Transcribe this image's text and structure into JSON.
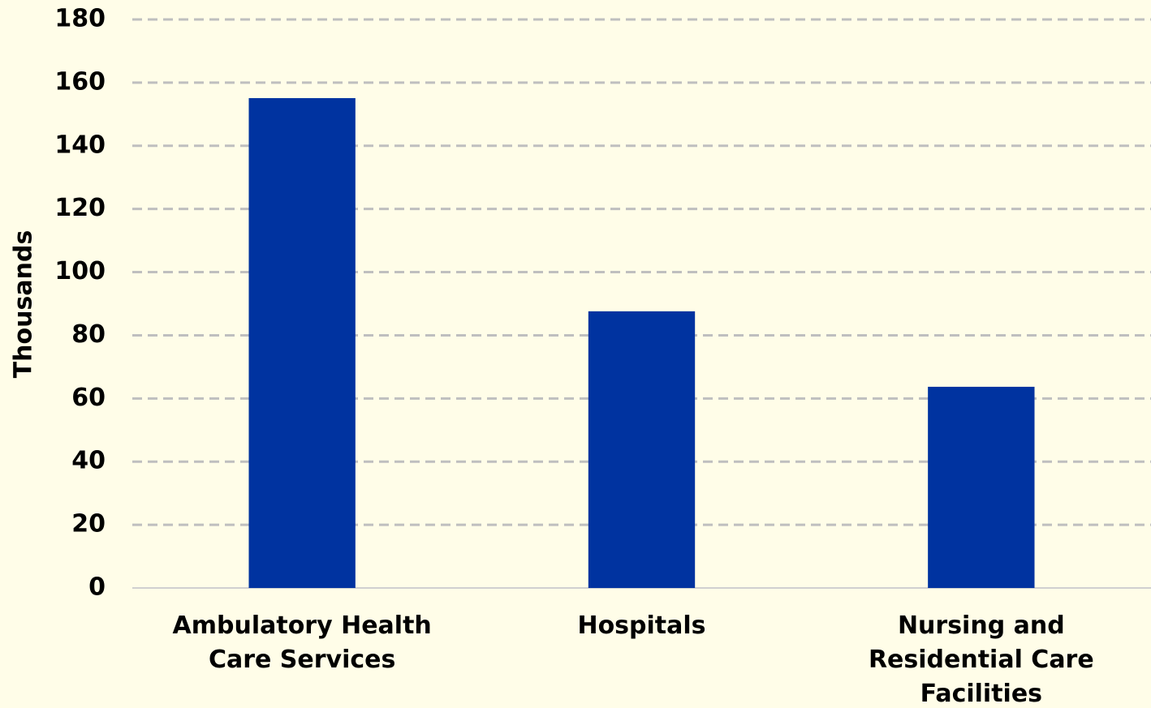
{
  "chart_data": {
    "type": "bar",
    "y_label": "Thousands",
    "categories": [
      "Ambulatory Health Care Services",
      "Hospitals",
      "Nursing and Residential Care Facilities"
    ],
    "values": [
      155.1,
      87.6,
      63.7
    ],
    "color": "#0033a0",
    "ylim": [
      0,
      180
    ],
    "yticks": [
      0,
      20,
      40,
      60,
      80,
      100,
      120,
      140,
      160,
      180
    ],
    "grid": true
  }
}
